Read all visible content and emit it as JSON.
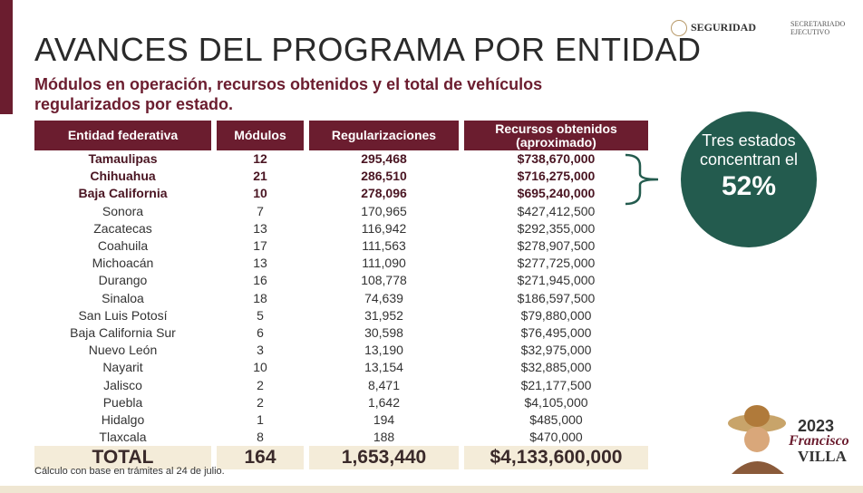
{
  "header": {
    "title": "AVANCES DEL PROGRAMA POR ENTIDAD",
    "subtitle": "Módulos en operación, recursos obtenidos y el total de vehículos regularizados por estado.",
    "logos": [
      "SEGURIDAD",
      "SECRETARIADO EJECUTIVO"
    ]
  },
  "table": {
    "headers": [
      "Entidad federativa",
      "Módulos",
      "Regularizaciones",
      "Recursos obtenidos (aproximado)"
    ],
    "rows": [
      [
        "Tamaulipas",
        "12",
        "295,468",
        "$738,670,000"
      ],
      [
        "Chihuahua",
        "21",
        "286,510",
        "$716,275,000"
      ],
      [
        "Baja California",
        "10",
        "278,096",
        "$695,240,000"
      ],
      [
        "Sonora",
        "7",
        "170,965",
        "$427,412,500"
      ],
      [
        "Zacatecas",
        "13",
        "116,942",
        "$292,355,000"
      ],
      [
        "Coahuila",
        "17",
        "111,563",
        "$278,907,500"
      ],
      [
        "Michoacán",
        "13",
        "111,090",
        "$277,725,000"
      ],
      [
        "Durango",
        "16",
        "108,778",
        "$271,945,000"
      ],
      [
        "Sinaloa",
        "18",
        "74,639",
        "$186,597,500"
      ],
      [
        "San Luis Potosí",
        "5",
        "31,952",
        "$79,880,000"
      ],
      [
        "Baja California Sur",
        "6",
        "30,598",
        "$76,495,000"
      ],
      [
        "Nuevo León",
        "3",
        "13,190",
        "$32,975,000"
      ],
      [
        "Nayarit",
        "10",
        "13,154",
        "$32,885,000"
      ],
      [
        "Jalisco",
        "2",
        "8,471",
        "$21,177,500"
      ],
      [
        "Puebla",
        "2",
        "1,642",
        "$4,105,000"
      ],
      [
        "Hidalgo",
        "1",
        "194",
        "$485,000"
      ],
      [
        "Tlaxcala",
        "8",
        "188",
        "$470,000"
      ]
    ],
    "total": [
      "TOTAL",
      "164",
      "1,653,440",
      "$4,133,600,000"
    ]
  },
  "callout": {
    "text": "Tres estados concentran el",
    "value": "52%"
  },
  "note": "Cálculo con base en trámites al 24 de julio.",
  "emblem": {
    "year": "2023",
    "name1": "Francisco",
    "name2": "VILLA"
  }
}
